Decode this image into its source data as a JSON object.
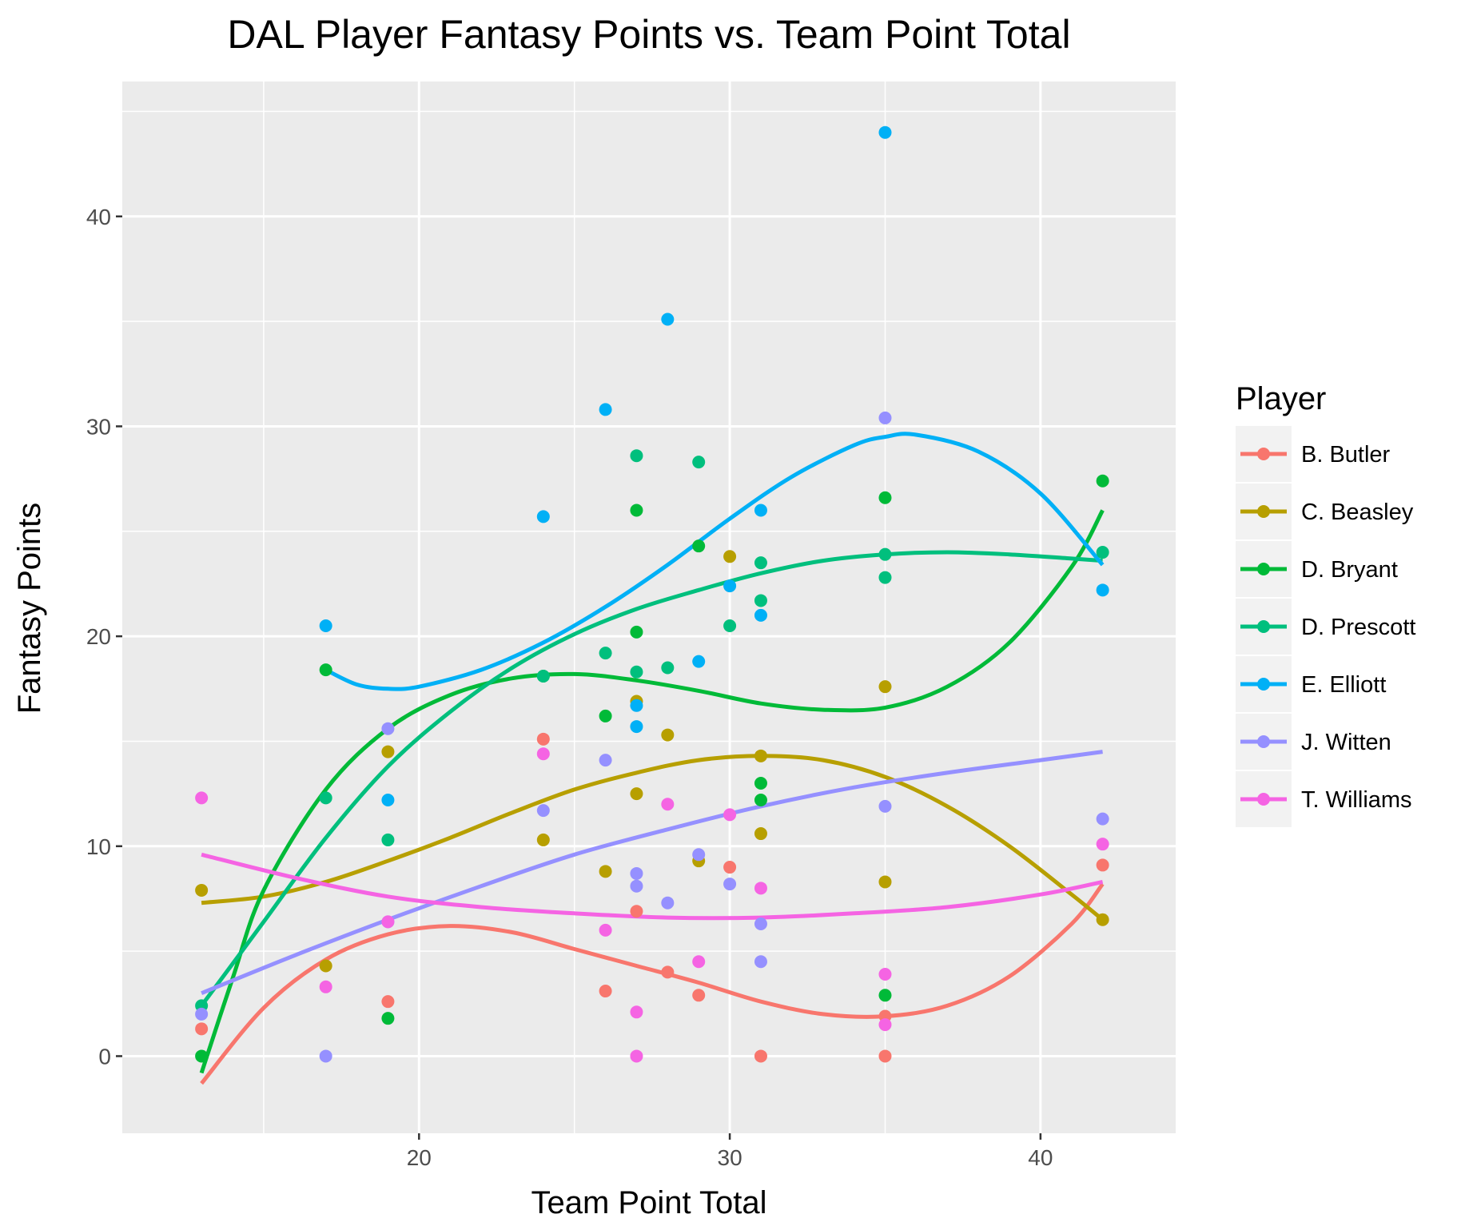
{
  "chart_data": {
    "type": "scatter",
    "title": "DAL Player Fantasy Points vs. Team Point Total",
    "xlabel": "Team Point Total",
    "ylabel": "Fantasy Points",
    "xlim": [
      10.45,
      44.35
    ],
    "ylim": [
      -3.675,
      46.425
    ],
    "xticks": [
      20,
      30,
      40
    ],
    "yticks": [
      0,
      10,
      20,
      30,
      40
    ],
    "grid": true,
    "legend": {
      "title": "Player",
      "position": "right"
    },
    "series": [
      {
        "name": "B. Butler",
        "color": "#F8766D",
        "points": [
          [
            13,
            1.3
          ],
          [
            19,
            2.6
          ],
          [
            24,
            15.1
          ],
          [
            26,
            3.1
          ],
          [
            27,
            6.9
          ],
          [
            28,
            4
          ],
          [
            29,
            2.9
          ],
          [
            30,
            9
          ],
          [
            31,
            0
          ],
          [
            35,
            1.9
          ],
          [
            35,
            0
          ],
          [
            42,
            9.1
          ]
        ],
        "trend": [
          [
            13,
            -1.3
          ],
          [
            15,
            2.3
          ],
          [
            17,
            4.6
          ],
          [
            19,
            5.8
          ],
          [
            21,
            6.2
          ],
          [
            23,
            5.9
          ],
          [
            25,
            5.1
          ],
          [
            27,
            4.3
          ],
          [
            29,
            3.5
          ],
          [
            31,
            2.6
          ],
          [
            33,
            2
          ],
          [
            35,
            1.9
          ],
          [
            37,
            2.4
          ],
          [
            39,
            3.8
          ],
          [
            41,
            6.3
          ],
          [
            42,
            8.2
          ]
        ]
      },
      {
        "name": "C. Beasley",
        "color": "#B79F00",
        "points": [
          [
            13,
            7.9
          ],
          [
            17,
            4.3
          ],
          [
            19,
            14.5
          ],
          [
            24,
            10.3
          ],
          [
            26,
            8.8
          ],
          [
            27,
            16.9
          ],
          [
            27,
            12.5
          ],
          [
            28,
            15.3
          ],
          [
            29,
            9.3
          ],
          [
            30,
            23.8
          ],
          [
            31,
            14.3
          ],
          [
            31,
            10.6
          ],
          [
            35,
            17.6
          ],
          [
            35,
            8.3
          ],
          [
            42,
            6.5
          ]
        ],
        "trend": [
          [
            13,
            7.3
          ],
          [
            15,
            7.6
          ],
          [
            17,
            8.3
          ],
          [
            19,
            9.3
          ],
          [
            21,
            10.4
          ],
          [
            23,
            11.6
          ],
          [
            25,
            12.7
          ],
          [
            27,
            13.5
          ],
          [
            29,
            14.1
          ],
          [
            31,
            14.3
          ],
          [
            33,
            14.1
          ],
          [
            35,
            13.3
          ],
          [
            37,
            11.9
          ],
          [
            39,
            10
          ],
          [
            41,
            7.7
          ],
          [
            42,
            6.5
          ]
        ]
      },
      {
        "name": "D. Bryant",
        "color": "#00BA38",
        "points": [
          [
            13,
            0
          ],
          [
            17,
            18.4
          ],
          [
            19,
            1.8
          ],
          [
            24,
            18.1
          ],
          [
            26,
            16.2
          ],
          [
            27,
            26
          ],
          [
            27,
            20.2
          ],
          [
            29,
            24.3
          ],
          [
            31,
            13
          ],
          [
            31,
            12.2
          ],
          [
            35,
            26.6
          ],
          [
            35,
            2.9
          ],
          [
            42,
            27.4
          ]
        ],
        "trend": [
          [
            13,
            -0.8
          ],
          [
            14,
            3.7
          ],
          [
            15,
            7.9
          ],
          [
            17,
            12.7
          ],
          [
            19,
            15.6
          ],
          [
            21,
            17.2
          ],
          [
            23,
            18
          ],
          [
            25,
            18.2
          ],
          [
            27,
            17.9
          ],
          [
            29,
            17.4
          ],
          [
            31,
            16.8
          ],
          [
            33,
            16.5
          ],
          [
            35,
            16.6
          ],
          [
            37,
            17.6
          ],
          [
            39,
            19.7
          ],
          [
            41,
            23.3
          ],
          [
            42,
            26
          ]
        ]
      },
      {
        "name": "D. Prescott",
        "color": "#00BF7D",
        "points": [
          [
            13,
            2.4
          ],
          [
            17,
            12.3
          ],
          [
            19,
            10.3
          ],
          [
            24,
            18.1
          ],
          [
            26,
            19.2
          ],
          [
            27,
            28.6
          ],
          [
            27,
            18.3
          ],
          [
            28,
            18.5
          ],
          [
            29,
            28.3
          ],
          [
            30,
            20.5
          ],
          [
            31,
            23.5
          ],
          [
            31,
            21.7
          ],
          [
            35,
            23.9
          ],
          [
            35,
            22.8
          ],
          [
            42,
            24
          ]
        ],
        "trend": [
          [
            13,
            2.4
          ],
          [
            15,
            6.4
          ],
          [
            17,
            10.4
          ],
          [
            19,
            13.8
          ],
          [
            21,
            16.4
          ],
          [
            23,
            18.5
          ],
          [
            25,
            20.1
          ],
          [
            27,
            21.3
          ],
          [
            29,
            22.2
          ],
          [
            31,
            23
          ],
          [
            33,
            23.6
          ],
          [
            35,
            23.9
          ],
          [
            37,
            24
          ],
          [
            39,
            23.9
          ],
          [
            41,
            23.7
          ],
          [
            42,
            23.6
          ]
        ]
      },
      {
        "name": "E. Elliott",
        "color": "#00B0F6",
        "points": [
          [
            17,
            20.5
          ],
          [
            19,
            12.2
          ],
          [
            24,
            25.7
          ],
          [
            26,
            30.8
          ],
          [
            27,
            16.7
          ],
          [
            27,
            15.7
          ],
          [
            28,
            35.1
          ],
          [
            29,
            18.8
          ],
          [
            30,
            22.4
          ],
          [
            31,
            26
          ],
          [
            31,
            21
          ],
          [
            35,
            44
          ],
          [
            42,
            22.2
          ]
        ],
        "trend": [
          [
            17,
            18.4
          ],
          [
            18,
            17.7
          ],
          [
            19,
            17.5
          ],
          [
            20,
            17.6
          ],
          [
            22,
            18.4
          ],
          [
            24,
            19.7
          ],
          [
            26,
            21.4
          ],
          [
            28,
            23.4
          ],
          [
            30,
            25.6
          ],
          [
            32,
            27.6
          ],
          [
            34,
            29.1
          ],
          [
            35,
            29.5
          ],
          [
            36,
            29.6
          ],
          [
            38,
            28.8
          ],
          [
            40,
            26.8
          ],
          [
            42,
            23.4
          ]
        ]
      },
      {
        "name": "J. Witten",
        "color": "#9590FF",
        "points": [
          [
            13,
            2
          ],
          [
            17,
            0
          ],
          [
            19,
            15.6
          ],
          [
            19,
            6.4
          ],
          [
            24,
            11.7
          ],
          [
            26,
            14.1
          ],
          [
            27,
            8.7
          ],
          [
            27,
            8.1
          ],
          [
            28,
            7.3
          ],
          [
            29,
            9.6
          ],
          [
            30,
            8.2
          ],
          [
            31,
            6.3
          ],
          [
            31,
            4.5
          ],
          [
            35,
            30.4
          ],
          [
            35,
            11.9
          ],
          [
            42,
            11.3
          ]
        ],
        "trend": [
          [
            13,
            3
          ],
          [
            16,
            4.8
          ],
          [
            19,
            6.5
          ],
          [
            22,
            8.1
          ],
          [
            25,
            9.6
          ],
          [
            28,
            10.8
          ],
          [
            31,
            11.9
          ],
          [
            34,
            12.8
          ],
          [
            37,
            13.5
          ],
          [
            40,
            14.1
          ],
          [
            42,
            14.5
          ]
        ]
      },
      {
        "name": "T. Williams",
        "color": "#F564E3",
        "points": [
          [
            13,
            12.3
          ],
          [
            17,
            3.3
          ],
          [
            19,
            6.4
          ],
          [
            24,
            14.4
          ],
          [
            26,
            6
          ],
          [
            27,
            2.1
          ],
          [
            27,
            0
          ],
          [
            28,
            12
          ],
          [
            29,
            4.5
          ],
          [
            30,
            11.5
          ],
          [
            31,
            8
          ],
          [
            35,
            3.9
          ],
          [
            35,
            1.5
          ],
          [
            42,
            10.1
          ]
        ],
        "trend": [
          [
            13,
            9.6
          ],
          [
            16,
            8.5
          ],
          [
            19,
            7.6
          ],
          [
            22,
            7.1
          ],
          [
            25,
            6.8
          ],
          [
            28,
            6.6
          ],
          [
            31,
            6.6
          ],
          [
            34,
            6.8
          ],
          [
            37,
            7.1
          ],
          [
            40,
            7.7
          ],
          [
            42,
            8.3
          ]
        ]
      }
    ]
  }
}
